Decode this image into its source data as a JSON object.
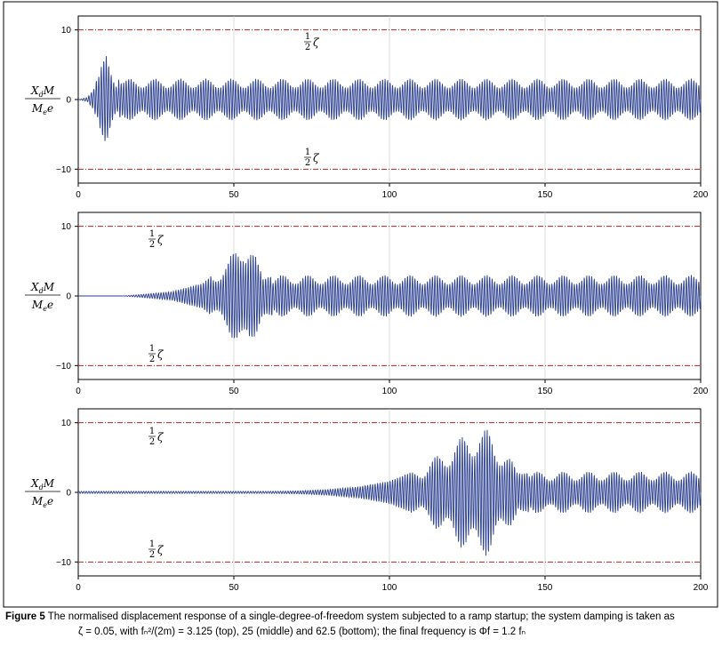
{
  "chart_data": [
    {
      "type": "line",
      "panel": "top",
      "xlim": [
        0,
        200
      ],
      "ylim": [
        -12,
        12
      ],
      "x_ticks": [
        "0",
        "50",
        "100",
        "150",
        "200"
      ],
      "y_ticks": [
        "10",
        "0",
        "−10"
      ],
      "ylabel_num": "X_dM",
      "ylabel_den": "M_ee",
      "grid": "vertical gridlines",
      "reference_lines": [
        10,
        -10
      ],
      "annotations": [
        "1/2ζ",
        "1/2ζ"
      ],
      "series": [
        {
          "color": "#2b3f8f",
          "points": [
            {
              "x": 0,
              "y": 0
            },
            {
              "x": 3,
              "y": 0.3
            },
            {
              "x": 5,
              "y": 1.5
            },
            {
              "x": 7,
              "y": 4.5
            },
            {
              "x": 9,
              "y": 6.5
            },
            {
              "x": 10,
              "y": 5.5
            },
            {
              "x": 12,
              "y": 3.5
            },
            {
              "x": 14,
              "y": 2.2
            },
            {
              "x": 16,
              "y": 3
            },
            {
              "x": 20,
              "y": 3
            },
            {
              "x": 200,
              "y": 3
            }
          ]
        }
      ]
    },
    {
      "type": "line",
      "panel": "middle",
      "xlim": [
        0,
        200
      ],
      "ylim": [
        -12,
        12
      ],
      "x_ticks": [
        "0",
        "50",
        "100",
        "150",
        "200"
      ],
      "y_ticks": [
        "10",
        "0",
        "−10"
      ],
      "ylabel_num": "X_dM",
      "ylabel_den": "M_ee",
      "grid": "vertical gridlines",
      "reference_lines": [
        10,
        -10
      ],
      "annotations": [
        "1/2ζ",
        "1/2ζ"
      ],
      "series": [
        {
          "color": "#2b3f8f",
          "points": [
            {
              "x": 0,
              "y": 0
            },
            {
              "x": 14,
              "y": 0
            },
            {
              "x": 20,
              "y": 0.2
            },
            {
              "x": 30,
              "y": 0.6
            },
            {
              "x": 40,
              "y": 1.8
            },
            {
              "x": 48,
              "y": 5
            },
            {
              "x": 53,
              "y": 8.8
            },
            {
              "x": 55,
              "y": 8
            },
            {
              "x": 58,
              "y": 4.5
            },
            {
              "x": 60,
              "y": 2.5
            },
            {
              "x": 63,
              "y": 3
            },
            {
              "x": 200,
              "y": 3
            }
          ]
        }
      ]
    },
    {
      "type": "line",
      "panel": "bottom",
      "xlim": [
        0,
        200
      ],
      "ylim": [
        -12,
        12
      ],
      "x_ticks": [
        "0",
        "50",
        "100",
        "150",
        "200"
      ],
      "y_ticks": [
        "10",
        "0",
        "−10"
      ],
      "ylabel_num": "X_dM",
      "ylabel_den": "M_ee",
      "grid": "vertical gridlines",
      "reference_lines": [
        10,
        -10
      ],
      "annotations": [
        "1/2ζ",
        "1/2ζ"
      ],
      "series": [
        {
          "color": "#2b3f8f",
          "points": [
            {
              "x": 0,
              "y": 0.15
            },
            {
              "x": 60,
              "y": 0.15
            },
            {
              "x": 70,
              "y": 0.2
            },
            {
              "x": 80,
              "y": 0.4
            },
            {
              "x": 90,
              "y": 0.8
            },
            {
              "x": 100,
              "y": 1.6
            },
            {
              "x": 110,
              "y": 3.5
            },
            {
              "x": 120,
              "y": 7
            },
            {
              "x": 128,
              "y": 9.5
            },
            {
              "x": 132,
              "y": 9
            },
            {
              "x": 138,
              "y": 5.5
            },
            {
              "x": 142,
              "y": 2.6
            },
            {
              "x": 146,
              "y": 3
            },
            {
              "x": 200,
              "y": 3
            }
          ]
        }
      ]
    }
  ],
  "caption": {
    "label": "Figure 5",
    "line1": " The normalised displacement response of a single-degree-of-freedom system subjected to a ramp startup; the system damping is taken as",
    "line2": "ζ = 0.05, with fₙ²/(2m) = 3.125 (top), 25 (middle) and 62.5 (bottom); the final frequency is Φf = 1.2 fₙ"
  },
  "colors": {
    "signal": "#2b3f8f",
    "reference": "#b22222",
    "grid": "#cccccc"
  }
}
